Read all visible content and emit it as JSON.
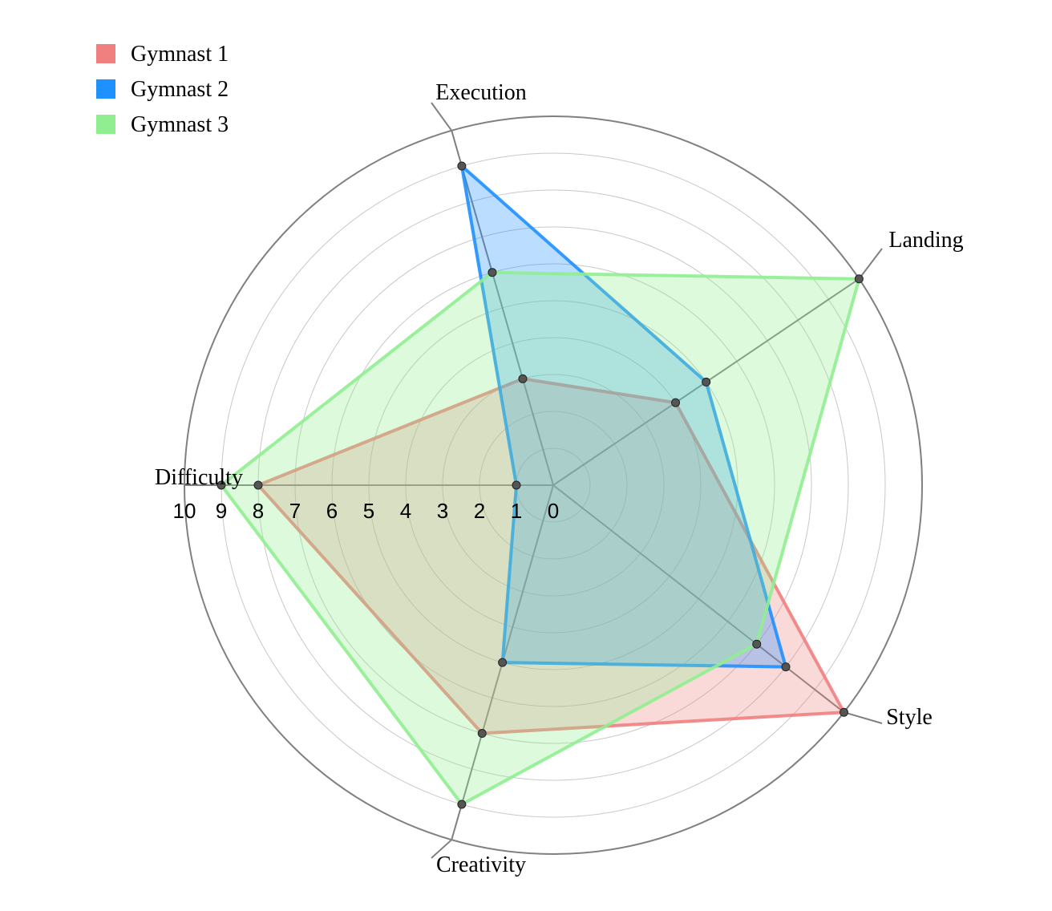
{
  "chart_data": {
    "type": "radar",
    "axes": [
      "Execution",
      "Landing",
      "Style",
      "Creativity",
      "Difficulty"
    ],
    "rlim": [
      0,
      10
    ],
    "ticks": [
      "0",
      "1",
      "2",
      "3",
      "4",
      "5",
      "6",
      "7",
      "8",
      "9",
      "10"
    ],
    "tick_axis": "Difficulty",
    "legend_position": "top-left",
    "series": [
      {
        "name": "Gymnast 1",
        "color": "#f08080",
        "values": [
          3,
          4,
          10,
          7,
          8
        ]
      },
      {
        "name": "Gymnast 2",
        "color": "#1e90ff",
        "values": [
          9,
          5,
          8,
          5,
          1
        ]
      },
      {
        "name": "Gymnast 3",
        "color": "#90ee90",
        "values": [
          6,
          10,
          7,
          9,
          9
        ]
      }
    ]
  }
}
